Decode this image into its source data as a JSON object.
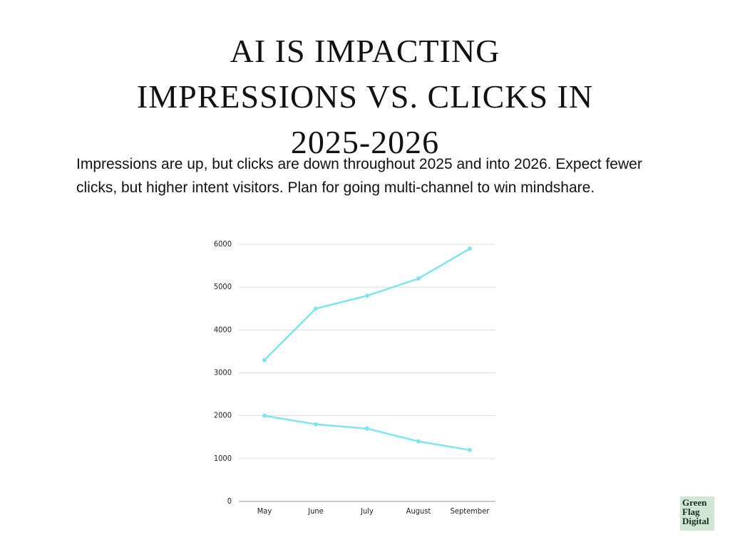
{
  "chart_data": {
    "type": "line",
    "title": "AI IS IMPACTING IMPRESSIONS VS. CLICKS IN 2025-2026",
    "subtitle": "Impressions are up, but clicks are down throughout 2025 and into 2026. Expect fewer clicks, but higher intent visitors. Plan for going multi-channel to win mindshare.",
    "categories": [
      "May",
      "June",
      "July",
      "August",
      "September"
    ],
    "series": [
      {
        "color": "#7ee4ef",
        "values": [
          3300,
          4500,
          4800,
          5200,
          5900
        ]
      },
      {
        "color": "#7ee4ef",
        "values": [
          2000,
          1800,
          1700,
          1400,
          1200
        ]
      }
    ],
    "ylim": [
      0,
      6000
    ],
    "yticks": [
      0,
      1000,
      2000,
      3000,
      4000,
      5000,
      6000
    ],
    "grid": true
  },
  "logo": {
    "lines": [
      "Green",
      "Flag",
      "Digital"
    ]
  }
}
